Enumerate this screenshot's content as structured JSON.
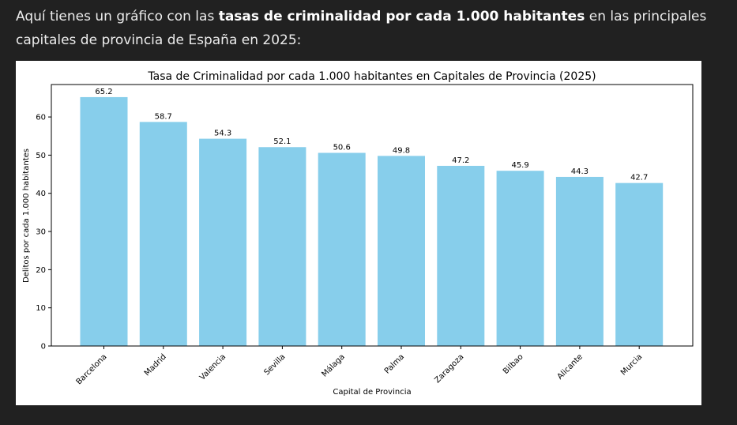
{
  "message": {
    "intro": "Aquí tienes un gráfico con las ",
    "bold": "tasas de criminalidad por cada 1.000 habitantes",
    "outro": " en las principales capitales de provincia de España en 2025:"
  },
  "chart_data": {
    "type": "bar",
    "title": "Tasa de Criminalidad por cada 1.000 habitantes en Capitales de Provincia (2025)",
    "xlabel": "Capital de Provincia",
    "ylabel": "Delitos por cada 1.000 habitantes",
    "categories": [
      "Barcelona",
      "Madrid",
      "Valencia",
      "Sevilla",
      "Málaga",
      "Palma",
      "Zaragoza",
      "Bilbao",
      "Alicante",
      "Murcia"
    ],
    "values": [
      65.2,
      58.7,
      54.3,
      52.1,
      50.6,
      49.8,
      47.2,
      45.9,
      44.3,
      42.7
    ],
    "value_labels": [
      "65.2",
      "58.7",
      "54.3",
      "52.1",
      "50.6",
      "49.8",
      "47.2",
      "45.9",
      "44.3",
      "42.7"
    ],
    "yticks": [
      0,
      10,
      20,
      30,
      40,
      50,
      60
    ],
    "ylim": [
      0,
      68.5
    ],
    "bar_color": "#87ceeb",
    "grid": false,
    "legend": false
  }
}
